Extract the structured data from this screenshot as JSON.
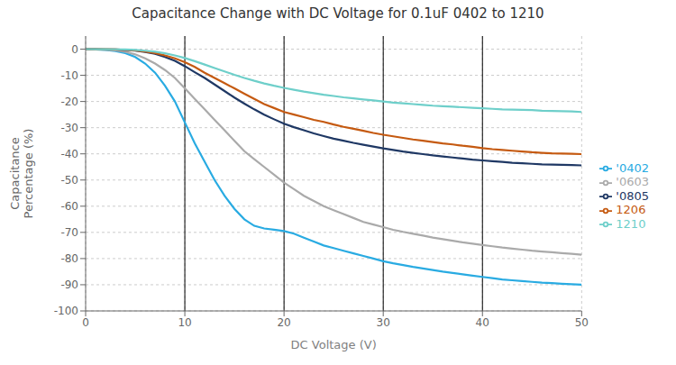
{
  "chart_data": {
    "type": "line",
    "title": "Capacitance Change with DC Voltage for 0.1uF 0402 to 1210",
    "x_label": "DC Voltage (V)",
    "y_label": "Capacitance\nPercentage (%)",
    "x": [
      0,
      1,
      2,
      3,
      4,
      5,
      6,
      7,
      8,
      9,
      10,
      11,
      12,
      13,
      14,
      15,
      16,
      17,
      18,
      19,
      20,
      21,
      22,
      23,
      24,
      25,
      26,
      27,
      28,
      29,
      30,
      31,
      32,
      33,
      34,
      35,
      36,
      37,
      38,
      39,
      40,
      41,
      42,
      43,
      44,
      45,
      46,
      47,
      48,
      49,
      50
    ],
    "series": [
      {
        "name": "'0402",
        "color": "#29abe2",
        "values": [
          0,
          -0.1,
          -0.3,
          -0.7,
          -1.5,
          -3.0,
          -5.5,
          -9.0,
          -14,
          -20,
          -28,
          -36,
          -43,
          -50,
          -56,
          -61,
          -65,
          -67.5,
          -68.5,
          -69,
          -69.5,
          -70.5,
          -72,
          -73.5,
          -75,
          -76,
          -77,
          -78,
          -79,
          -80,
          -81,
          -81.8,
          -82.5,
          -83.2,
          -83.8,
          -84.4,
          -85,
          -85.5,
          -86,
          -86.5,
          -87,
          -87.5,
          -88,
          -88.3,
          -88.6,
          -88.9,
          -89.2,
          -89.4,
          -89.6,
          -89.8,
          -90
        ]
      },
      {
        "name": "'0603",
        "color": "#aaaaaa",
        "values": [
          0,
          -0.05,
          -0.2,
          -0.5,
          -1.0,
          -2.0,
          -3.5,
          -5.5,
          -8,
          -11,
          -15,
          -19,
          -23,
          -27,
          -31,
          -35,
          -39,
          -42,
          -45,
          -48,
          -51,
          -53.5,
          -56,
          -58,
          -60,
          -61.5,
          -63,
          -64.5,
          -66,
          -67,
          -68,
          -69,
          -69.8,
          -70.5,
          -71.2,
          -72,
          -72.6,
          -73.2,
          -73.8,
          -74.3,
          -74.8,
          -75.3,
          -75.8,
          -76.2,
          -76.6,
          -77,
          -77.3,
          -77.6,
          -77.9,
          -78.2,
          -78.5
        ]
      },
      {
        "name": "'0805",
        "color": "#1f3864",
        "values": [
          0,
          -0.02,
          -0.07,
          -0.15,
          -0.3,
          -0.6,
          -1.1,
          -1.8,
          -3.0,
          -4.5,
          -6.5,
          -8.8,
          -11,
          -13.5,
          -16,
          -18.5,
          -20.8,
          -23,
          -25,
          -26.8,
          -28.5,
          -29.8,
          -31,
          -32.2,
          -33.2,
          -34.2,
          -35,
          -35.8,
          -36.5,
          -37.2,
          -37.9,
          -38.5,
          -39.1,
          -39.6,
          -40.1,
          -40.6,
          -41,
          -41.4,
          -41.8,
          -42.2,
          -42.5,
          -42.8,
          -43.1,
          -43.4,
          -43.6,
          -43.8,
          -44,
          -44.1,
          -44.2,
          -44.3,
          -44.4
        ]
      },
      {
        "name": "1206",
        "color": "#c55a11",
        "values": [
          0,
          -0.02,
          -0.05,
          -0.1,
          -0.25,
          -0.5,
          -0.9,
          -1.5,
          -2.4,
          -3.5,
          -5.0,
          -6.8,
          -9,
          -11,
          -13,
          -15,
          -17,
          -19,
          -21,
          -22.5,
          -24,
          -25,
          -26,
          -27,
          -27.8,
          -28.8,
          -29.7,
          -30.4,
          -31.2,
          -32,
          -32.7,
          -33.3,
          -33.9,
          -34.5,
          -35,
          -35.5,
          -36,
          -36.4,
          -36.9,
          -37.3,
          -37.8,
          -38.2,
          -38.5,
          -38.8,
          -39.1,
          -39.4,
          -39.6,
          -39.8,
          -39.9,
          -40.0,
          -40.1
        ]
      },
      {
        "name": "1210",
        "color": "#6ecfca",
        "values": [
          0,
          -0.01,
          -0.03,
          -0.07,
          -0.15,
          -0.3,
          -0.6,
          -1.0,
          -1.6,
          -2.4,
          -3.4,
          -4.6,
          -5.9,
          -7.2,
          -8.5,
          -9.8,
          -11,
          -12.1,
          -13.1,
          -14,
          -14.8,
          -15.5,
          -16.2,
          -16.8,
          -17.4,
          -17.9,
          -18.4,
          -18.8,
          -19.2,
          -19.6,
          -20,
          -20.4,
          -20.7,
          -21,
          -21.3,
          -21.6,
          -21.8,
          -22,
          -22.2,
          -22.4,
          -22.6,
          -22.8,
          -23,
          -23.1,
          -23.2,
          -23.3,
          -23.5,
          -23.6,
          -23.7,
          -23.8,
          -24.0
        ]
      }
    ],
    "xlim": [
      0,
      50
    ],
    "ylim": [
      -100,
      5
    ],
    "xticks": [
      0,
      10,
      20,
      30,
      40,
      50
    ],
    "yticks": [
      0,
      -10,
      -20,
      -30,
      -40,
      -50,
      -60,
      -70,
      -80,
      -90,
      -100
    ],
    "vlines": [
      10,
      20,
      30,
      40
    ],
    "grid": true,
    "legend": "right"
  }
}
